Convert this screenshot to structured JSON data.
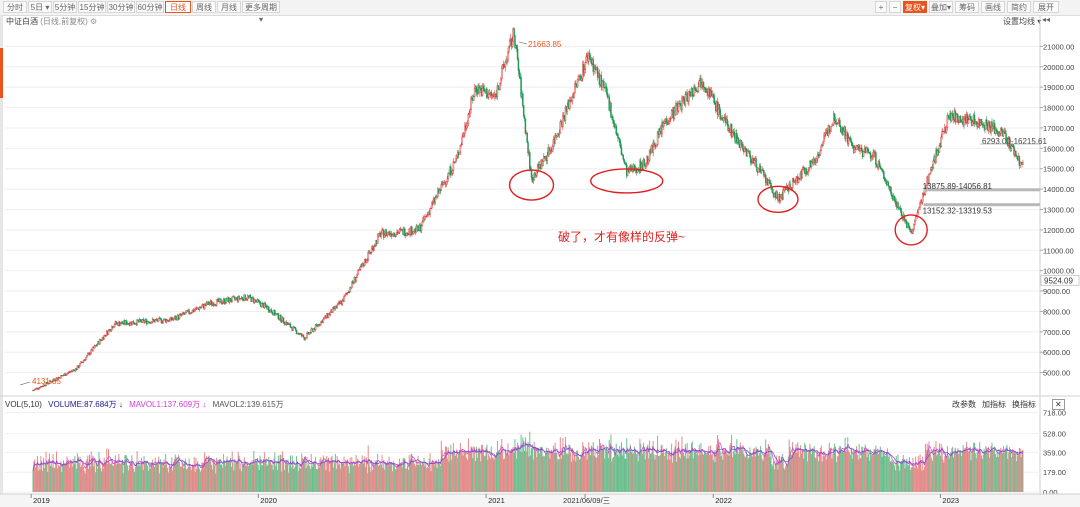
{
  "toolbar": {
    "left_tabs": [
      "分时",
      "5日",
      "5分钟",
      "15分钟",
      "30分钟",
      "60分钟",
      "日线",
      "周线",
      "月线",
      "更多周期"
    ],
    "active_tab": "日线",
    "right_tabs": [
      "+",
      "−",
      "复权",
      "叠加",
      "筹码",
      "画线",
      "简约",
      "展开"
    ],
    "active_right": "复权"
  },
  "header": {
    "index_name": "中证白酒",
    "mode": "(日线,前复权)",
    "settings_label": "设置均线"
  },
  "vol_panel": {
    "title": "VOL(5,10)",
    "volume_label": "VOLUME:87.684万",
    "mavol1_label": "MAVOL1:137.609万",
    "mavol2_label": "MAVOL2:139.615万",
    "buttons": [
      "改参数",
      "加指标",
      "换指标"
    ]
  },
  "annotation": {
    "comment": "破了，才有像样的反弹~"
  },
  "chart_data": {
    "type": "candlestick",
    "title": "中证白酒",
    "price_axis": {
      "ticks": [
        5000,
        6000,
        7000,
        8000,
        9000,
        10000,
        11000,
        12000,
        13000,
        14000,
        15000,
        16000,
        17000,
        18000,
        19000,
        20000,
        21000
      ],
      "tick_labels": [
        "5000.00",
        "6000.00",
        "7000.00",
        "8000.00",
        "9000.00",
        "10000.00",
        "11000.00",
        "12000.00",
        "13000.00",
        "14000.00",
        "15000.00",
        "16000.00",
        "17000.00",
        "18000.00",
        "19000.00",
        "20000.00",
        "21000.00"
      ],
      "range": [
        4000,
        22000
      ]
    },
    "volume_axis": {
      "tick_labels": [
        "718.00",
        "528.00",
        "359.00",
        "179.00",
        "0.00"
      ],
      "ticks": [
        718,
        528,
        359,
        179,
        0
      ],
      "unit": "万"
    },
    "x_axis": {
      "labels": [
        "2019",
        "2020",
        "2021",
        "2021/06/09/三",
        "2022",
        "2023"
      ]
    },
    "key_points": [
      {
        "date": "2019-01",
        "price": 4131.85
      },
      {
        "date": "2019-03",
        "price": 5200
      },
      {
        "date": "2019-05",
        "price": 7400
      },
      {
        "date": "2019-08",
        "price": 7600
      },
      {
        "date": "2019-10",
        "price": 8400
      },
      {
        "date": "2019-12",
        "price": 8700
      },
      {
        "date": "2020-01",
        "price": 8200
      },
      {
        "date": "2020-03",
        "price": 6700
      },
      {
        "date": "2020-05",
        "price": 8500
      },
      {
        "date": "2020-07",
        "price": 11800
      },
      {
        "date": "2020-09",
        "price": 12000
      },
      {
        "date": "2020-11",
        "price": 15500
      },
      {
        "date": "2020-12",
        "price": 19000
      },
      {
        "date": "2021-01",
        "price": 18500
      },
      {
        "date": "2021-02",
        "price": 21663.85
      },
      {
        "date": "2021-03",
        "price": 14500
      },
      {
        "date": "2021-04",
        "price": 16000
      },
      {
        "date": "2021-06",
        "price": 20600
      },
      {
        "date": "2021-07",
        "price": 18500
      },
      {
        "date": "2021-08",
        "price": 14800
      },
      {
        "date": "2021-09",
        "price": 15300
      },
      {
        "date": "2021-10",
        "price": 17300
      },
      {
        "date": "2021-12",
        "price": 19400
      },
      {
        "date": "2022-01",
        "price": 17500
      },
      {
        "date": "2022-03",
        "price": 15000
      },
      {
        "date": "2022-04",
        "price": 13500
      },
      {
        "date": "2022-06",
        "price": 15500
      },
      {
        "date": "2022-07",
        "price": 17600
      },
      {
        "date": "2022-08",
        "price": 16000
      },
      {
        "date": "2022-09",
        "price": 15700
      },
      {
        "date": "2022-10",
        "price": 13800
      },
      {
        "date": "2022-11",
        "price": 11800
      },
      {
        "date": "2022-12",
        "price": 14800
      },
      {
        "date": "2023-01",
        "price": 17600
      },
      {
        "date": "2023-03",
        "price": 17200
      },
      {
        "date": "2023-04",
        "price": 16600
      },
      {
        "date": "2023-05",
        "price": 15000
      }
    ],
    "price_labels": [
      {
        "text": "4131.85",
        "value": 4131.85
      },
      {
        "text": "21663.85",
        "value": 21663.85
      },
      {
        "text": "9524.09",
        "value": 9524.09
      },
      {
        "text": "6293.00-16215.61"
      }
    ],
    "support_zones": [
      {
        "label": "13875.89-14056.81",
        "low": 13875.89,
        "high": 14056.81
      },
      {
        "label": "13152.32-13319.53",
        "low": 13152.32,
        "high": 13319.53
      }
    ],
    "circled_lows": [
      {
        "date": "2021-03",
        "price": 14200
      },
      {
        "date": "2021-08",
        "price": 14400
      },
      {
        "date": "2022-04",
        "price": 13500
      },
      {
        "date": "2022-11",
        "price": 12000
      }
    ],
    "colors": {
      "up": "#e03b3b",
      "down": "#1f9a55",
      "mavol1": "#d23fd2",
      "mavol2": "#6a4fd0",
      "annotation": "#e02020",
      "accent": "#e8541e"
    }
  }
}
